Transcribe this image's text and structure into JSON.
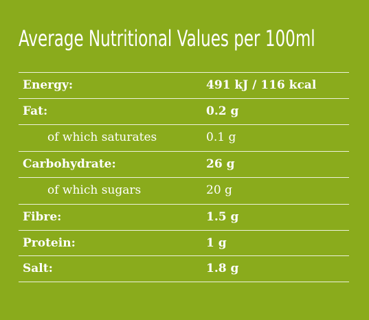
{
  "title": "Average Nutritional Values per 100ml",
  "rows": [
    {
      "label": "Energy:",
      "value": "491 kJ / 116 kcal"
    },
    {
      "label": "Fat:",
      "value": "0.2 g"
    },
    {
      "label": "of which saturates",
      "value": "0.1 g"
    },
    {
      "label": "Carbohydrate:",
      "value": "26 g"
    },
    {
      "label": "of which sugars",
      "value": "20 g"
    },
    {
      "label": "Fibre:",
      "value": "1.5 g"
    },
    {
      "label": "Protein:",
      "value": "1 g"
    },
    {
      "label": "Salt:",
      "value": "1.8 g"
    }
  ],
  "colors": {
    "background": "#8aab1c",
    "text": "#ffffff"
  }
}
